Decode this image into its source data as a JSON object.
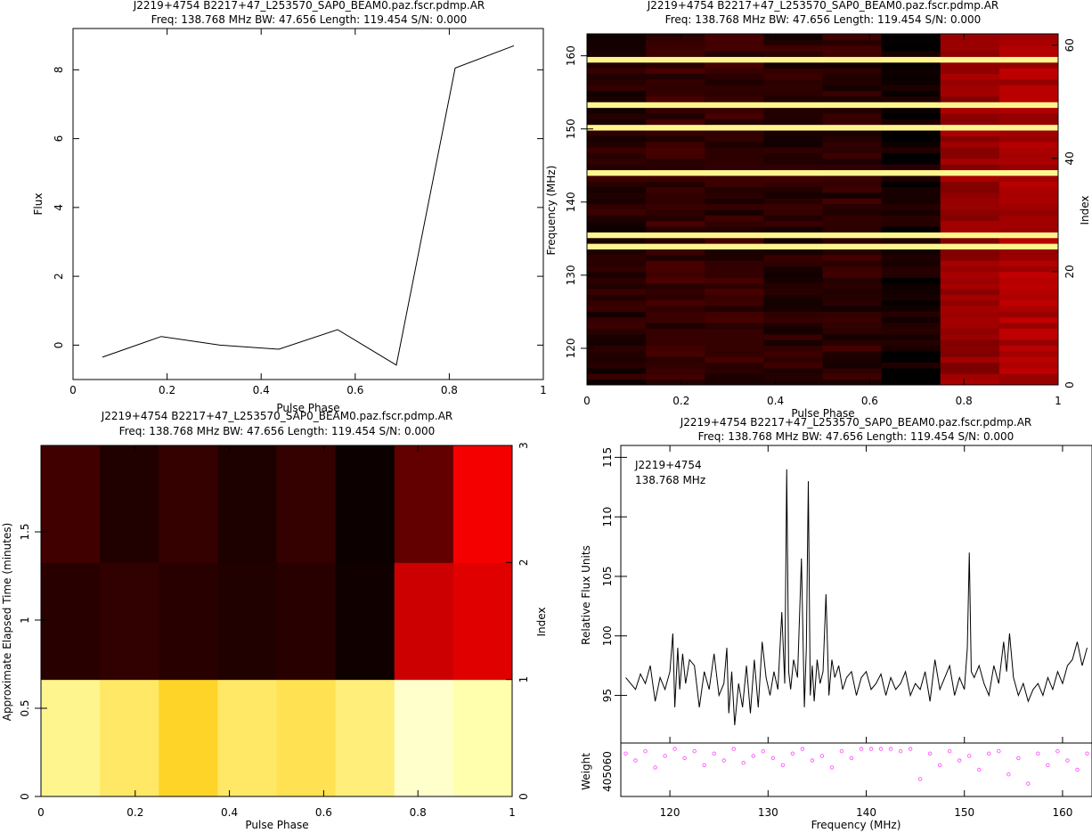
{
  "panels": {
    "profile": {
      "title1": "J2219+4754  B2217+47_L253570_SAP0_BEAM0.paz.fscr.pdmp.AR",
      "title2": "Freq: 138.768 MHz BW: 47.656 Length: 119.454 S/N: 0.000",
      "xlabel": "Pulse Phase",
      "ylabel": "Flux"
    },
    "freq_phase": {
      "title1": "J2219+4754  B2217+47_L253570_SAP0_BEAM0.paz.fscr.pdmp.AR",
      "title2": "Freq: 138.768 MHz BW: 47.656 Length: 119.454 S/N: 0.000",
      "xlabel": "Pulse Phase",
      "ylabel": "Frequency (MHz)",
      "y2label": "Index"
    },
    "time_phase": {
      "title1": "J2219+4754  B2217+47_L253570_SAP0_BEAM0.paz.fscr.pdmp.AR",
      "title2": "Freq: 138.768 MHz BW: 47.656 Length: 119.454 S/N: 0.000",
      "xlabel": "Pulse Phase",
      "ylabel": "Approximate Elapsed Time (minutes)",
      "y2label": "Index"
    },
    "bandpass": {
      "title1": "J2219+4754  B2217+47_L253570_SAP0_BEAM0.paz.fscr.pdmp.AR",
      "title2": "Freq: 138.768 MHz BW: 47.656 Length: 119.454 S/N: 0.000",
      "xlabel": "Frequency (MHz)",
      "ylabel": "Relative Flux Units",
      "ylabel2": "Weight",
      "weight_tick": "405060",
      "annot1": "J2219+4754",
      "annot2": "138.768 MHz"
    }
  },
  "colors": {
    "line": "#000000",
    "weights": "#ff44ff",
    "zap": "#fffbd0"
  },
  "chart_data": [
    {
      "type": "line",
      "xlim": [
        0,
        1
      ],
      "ylim": [
        -1,
        9.2
      ],
      "x": [
        0.0625,
        0.1875,
        0.3125,
        0.4375,
        0.5625,
        0.6875,
        0.8125,
        0.9375
      ],
      "values": [
        -0.35,
        0.25,
        0.0,
        -0.12,
        0.45,
        -0.58,
        8.05,
        8.7
      ],
      "xticks": [
        0,
        0.2,
        0.4,
        0.6,
        0.8,
        1
      ],
      "yticks": [
        0,
        2,
        4,
        6,
        8
      ],
      "grid": false
    },
    {
      "type": "heatmap",
      "xlim": [
        0,
        1
      ],
      "ylim": [
        115,
        163
      ],
      "y2lim": [
        0,
        62
      ],
      "phase_bins": 8,
      "channels": 62,
      "zapped_channels": [
        24,
        26,
        37,
        45,
        49,
        57
      ],
      "xticks": [
        0,
        0.2,
        0.4,
        0.6,
        0.8,
        1
      ],
      "yticks": [
        120,
        130,
        140,
        150,
        160
      ],
      "y2ticks": [
        0,
        20,
        40,
        60
      ],
      "grid": false
    },
    {
      "type": "heatmap",
      "xlim": [
        0,
        1
      ],
      "ylim": [
        0,
        1.99
      ],
      "y2lim": [
        0,
        3
      ],
      "phase_bins": 8,
      "subints": 3,
      "cells": [
        [
          0.97,
          0.95,
          0.92,
          0.95,
          0.94,
          0.96,
          1.0,
          0.985
        ],
        [
          0.1,
          0.12,
          0.1,
          0.08,
          0.1,
          0.04,
          0.5,
          0.55
        ],
        [
          0.16,
          0.08,
          0.13,
          0.07,
          0.13,
          0.03,
          0.24,
          0.6
        ]
      ],
      "xticks": [
        0,
        0.2,
        0.4,
        0.6,
        0.8,
        1
      ],
      "yticks": [
        0,
        0.5,
        1,
        1.5
      ],
      "y2ticks": [
        0,
        1,
        2,
        3
      ],
      "grid": false
    },
    {
      "type": "line",
      "xlim": [
        115,
        163
      ],
      "ylim": [
        91,
        116
      ],
      "xticks": [
        120,
        130,
        140,
        150,
        160
      ],
      "yticks": [
        95,
        100,
        105,
        110,
        115
      ],
      "x": [
        115.5,
        116.0,
        116.5,
        117.0,
        117.5,
        118.0,
        118.5,
        119.0,
        119.5,
        120.0,
        120.3,
        120.5,
        120.8,
        121.0,
        121.3,
        121.6,
        122.0,
        122.5,
        123.0,
        123.5,
        124.0,
        124.5,
        125.0,
        125.5,
        125.8,
        126.0,
        126.3,
        126.6,
        127.0,
        127.4,
        127.8,
        128.2,
        128.6,
        129.0,
        129.4,
        129.8,
        130.2,
        130.6,
        131.0,
        131.4,
        131.7,
        131.9,
        132.1,
        132.3,
        132.6,
        133.0,
        133.4,
        133.7,
        133.9,
        134.1,
        134.3,
        134.5,
        134.7,
        135.0,
        135.3,
        135.6,
        135.9,
        136.2,
        136.5,
        136.8,
        137.2,
        137.6,
        138.0,
        138.5,
        139.0,
        139.5,
        140.0,
        140.5,
        141.0,
        141.5,
        142.0,
        142.5,
        143.0,
        143.5,
        144.0,
        144.5,
        145.0,
        145.5,
        146.0,
        146.5,
        147.0,
        147.5,
        148.0,
        148.5,
        149.0,
        149.5,
        150.0,
        150.3,
        150.5,
        150.7,
        151.0,
        151.5,
        152.0,
        152.5,
        153.0,
        153.5,
        154.0,
        154.3,
        154.6,
        155.0,
        155.5,
        156.0,
        156.5,
        157.0,
        157.5,
        158.0,
        158.5,
        159.0,
        159.5,
        160.0,
        160.5,
        161.0,
        161.5,
        162.0,
        162.5
      ],
      "values": [
        96.5,
        96.0,
        95.5,
        96.8,
        96.0,
        97.5,
        94.5,
        96.5,
        95.5,
        97.0,
        100.2,
        94.0,
        99.0,
        95.5,
        98.5,
        96.0,
        98.0,
        97.5,
        94.0,
        97.0,
        95.5,
        98.5,
        95.0,
        96.0,
        99.0,
        93.5,
        97.0,
        92.5,
        96.0,
        94.0,
        97.5,
        93.5,
        98.0,
        94.0,
        99.5,
        96.5,
        95.0,
        97.0,
        95.5,
        102.0,
        96.0,
        114.0,
        97.0,
        95.5,
        98.0,
        96.5,
        106.5,
        94.0,
        99.0,
        113.0,
        95.0,
        97.5,
        94.5,
        98.0,
        96.0,
        97.0,
        103.5,
        95.0,
        98.0,
        96.5,
        97.5,
        95.5,
        96.5,
        97.0,
        95.0,
        96.5,
        97.0,
        95.5,
        96.0,
        96.8,
        95.0,
        96.5,
        95.5,
        96.0,
        97.0,
        95.0,
        96.0,
        95.5,
        97.0,
        94.5,
        98.0,
        95.5,
        96.5,
        97.5,
        95.0,
        96.5,
        95.5,
        99.0,
        107.0,
        97.0,
        96.5,
        97.5,
        96.0,
        95.0,
        97.5,
        96.0,
        99.5,
        97.0,
        100.2,
        96.5,
        95.0,
        96.0,
        94.5,
        95.5,
        96.0,
        95.0,
        96.5,
        95.5,
        97.0,
        96.0,
        97.5,
        98.0,
        99.5,
        97.5,
        99.0
      ],
      "weights_x": [
        115.5,
        116.5,
        117.5,
        118.5,
        119.5,
        120.5,
        121.5,
        122.5,
        123.5,
        124.5,
        125.5,
        126.5,
        127.5,
        128.5,
        129.5,
        130.5,
        131.5,
        132.5,
        133.5,
        134.5,
        135.5,
        136.5,
        137.5,
        138.5,
        139.5,
        140.5,
        141.5,
        142.5,
        143.5,
        144.5,
        145.5,
        146.5,
        147.5,
        148.5,
        149.5,
        150.5,
        151.5,
        152.5,
        153.5,
        154.5,
        155.5,
        156.5,
        157.5,
        158.5,
        159.5,
        160.5,
        161.5,
        162.5
      ],
      "weights": [
        0.85,
        0.7,
        0.9,
        0.55,
        0.8,
        0.95,
        0.75,
        0.9,
        0.6,
        0.85,
        0.7,
        0.95,
        0.65,
        0.8,
        0.9,
        0.75,
        0.6,
        0.85,
        0.95,
        0.7,
        0.8,
        0.55,
        0.9,
        0.75,
        0.95,
        0.95,
        0.95,
        0.95,
        0.9,
        0.95,
        0.3,
        0.85,
        0.6,
        0.9,
        0.7,
        0.8,
        0.5,
        0.85,
        0.9,
        0.4,
        0.75,
        0.2,
        0.85,
        0.6,
        0.9,
        0.7,
        0.5,
        0.85
      ],
      "grid": false
    }
  ]
}
